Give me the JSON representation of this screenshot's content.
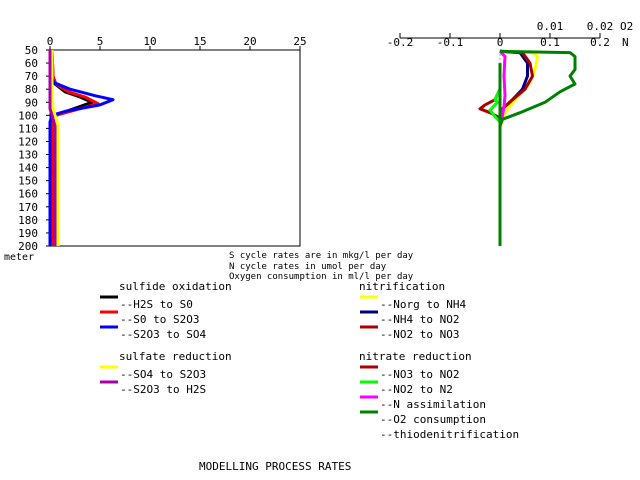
{
  "chart_data": [
    {
      "type": "line",
      "panel": "sulfur cycle rates",
      "x_axis_position": "top",
      "xlim": [
        0,
        25
      ],
      "x_ticks": [
        0,
        5,
        10,
        15,
        20,
        25
      ],
      "x_tick_labels": [
        "0",
        "5",
        "10",
        "15",
        "20",
        "25"
      ],
      "ylim": [
        50,
        200
      ],
      "y_inverted": true,
      "y_ticks": [
        50,
        60,
        70,
        80,
        90,
        100,
        110,
        120,
        130,
        140,
        150,
        160,
        170,
        180,
        190,
        200
      ],
      "y_tick_labels": [
        "50",
        "60",
        "70",
        "80",
        "90",
        "100",
        "110",
        "120",
        "130",
        "140",
        "150",
        "160",
        "170",
        "180",
        "190",
        "200"
      ],
      "ylabel": "meter",
      "series": [
        {
          "name": "--H2S to S0",
          "color": "#000000",
          "x": [
            0.2,
            0.3,
            0.5,
            1.5,
            3.0,
            4.2,
            2.0,
            0.5,
            0.3,
            0.2,
            0.2,
            0.2
          ],
          "y": [
            50,
            70,
            76,
            82,
            86,
            90,
            96,
            100,
            105,
            120,
            160,
            200
          ]
        },
        {
          "name": "--S0 to S2O3",
          "color": "#ff0000",
          "x": [
            0.2,
            0.3,
            0.6,
            1.8,
            3.5,
            4.8,
            2.5,
            0.6,
            0.3,
            0.2,
            0.2,
            0.2
          ],
          "y": [
            50,
            70,
            76,
            82,
            86,
            91,
            96,
            100,
            105,
            120,
            160,
            200
          ]
        },
        {
          "name": "--S2O3 to SO4",
          "color": "#0000ff",
          "x": [
            0.0,
            0.1,
            0.4,
            2.0,
            4.5,
            6.3,
            5.0,
            1.5,
            0.2,
            0.0,
            0.0,
            0.0
          ],
          "y": [
            50,
            70,
            75,
            80,
            85,
            88,
            92,
            97,
            100,
            105,
            150,
            200
          ]
        },
        {
          "name": "--SO4 to S2O3",
          "color": "#ffff00",
          "x": [
            0.2,
            0.2,
            0.3,
            0.5,
            0.7,
            0.8,
            0.8,
            0.8,
            0.8
          ],
          "y": [
            50,
            85,
            95,
            100,
            105,
            110,
            130,
            160,
            200
          ]
        },
        {
          "name": "--S2O3 to H2S",
          "color": "#aa00aa",
          "x": [
            0.0,
            0.0,
            0.2,
            0.3,
            0.5,
            0.5,
            0.5
          ],
          "y": [
            50,
            95,
            100,
            103,
            108,
            150,
            200
          ]
        }
      ]
    },
    {
      "type": "line",
      "panel": "nitrogen cycle rates and oxygen consumption",
      "x_axis_position": "top",
      "xlim": [
        -0.2,
        0.2
      ],
      "x_ticks": [
        -0.2,
        -0.1,
        0,
        0.1,
        0.2
      ],
      "x_tick_labels": [
        "-0.2",
        "-0.1",
        "0",
        "0.1",
        "0.2"
      ],
      "x2_ticks": [
        0.01,
        0.02
      ],
      "x2_tick_labels": [
        "0.01",
        "0.02"
      ],
      "x2_label": "O2",
      "x_unit_label": "N",
      "ylim": [
        50,
        200
      ],
      "y_inverted": true,
      "series": [
        {
          "name": "--Norg to NH4",
          "color": "#ffff00",
          "x": [
            0.0,
            0.065,
            0.075,
            0.07,
            0.06,
            0.045,
            0.03,
            0.02,
            0.01,
            0.005,
            0.0,
            0.0
          ],
          "y": [
            51,
            52,
            55,
            65,
            75,
            82,
            88,
            93,
            98,
            103,
            110,
            200
          ]
        },
        {
          "name": "--NH4 to NO2",
          "color": "#000080",
          "x": [
            0.0,
            0.04,
            0.055,
            0.055,
            0.045,
            0.025,
            0.005,
            0.0
          ],
          "y": [
            51,
            52,
            60,
            70,
            80,
            88,
            95,
            100
          ]
        },
        {
          "name": "--NO2 to NO3",
          "color": "#aa0000",
          "x": [
            0.0,
            0.045,
            0.06,
            0.065,
            0.05,
            0.025,
            0.005,
            0.0
          ],
          "y": [
            51,
            52,
            60,
            70,
            80,
            88,
            95,
            100
          ]
        },
        {
          "name": "--NO3 to NO2",
          "color": "#aa0000",
          "x": [
            0.0,
            -0.01,
            -0.03,
            -0.04,
            -0.02,
            0.0,
            0.0
          ],
          "y": [
            80,
            88,
            92,
            95,
            98,
            102,
            110
          ]
        },
        {
          "name": "--NO2 to N2",
          "color": "#00ff00",
          "x": [
            0.0,
            -0.01,
            -0.005,
            -0.02,
            -0.01,
            0.0,
            0.0
          ],
          "y": [
            80,
            88,
            90,
            96,
            101,
            105,
            200
          ]
        },
        {
          "name": "--N assimilation",
          "color": "#ff00ff",
          "x": [
            0.0,
            0.01,
            0.008,
            0.01,
            0.008,
            0.005,
            0.0,
            0.0
          ],
          "y": [
            51,
            55,
            70,
            85,
            93,
            100,
            108,
            200
          ]
        },
        {
          "name": "--O2 consumption",
          "color": "#008000",
          "x": [
            0.0,
            0.14,
            0.15,
            0.15,
            0.14,
            0.15,
            0.12,
            0.09,
            0.04,
            0.005,
            0.0,
            0.0
          ],
          "y": [
            51,
            52,
            55,
            65,
            70,
            76,
            82,
            90,
            98,
            103,
            108,
            200
          ]
        },
        {
          "name": "--thiodenitrification",
          "color": "#008000",
          "x": [
            0.0,
            0.0,
            0.0
          ],
          "y": [
            60,
            140,
            200
          ]
        }
      ]
    }
  ],
  "notes": {
    "line1": "S cycle rates are in mkg/l per day",
    "line2": "N cycle rates in umol per day",
    "line3": "Oxygen consumption in ml/l per day"
  },
  "legend_groups": {
    "sulfide_oxidation": "sulfide oxidation",
    "sulfate_reduction": "sulfate reduction",
    "nitrification": "nitrification",
    "nitrate_reduction": "nitrate reduction"
  },
  "legend_swatch_colors": [
    "#000000",
    "#ff0000",
    "#0000ff",
    "#ffff00",
    "#aa00aa",
    "#ffff00",
    "#000080",
    "#aa0000",
    "#aa0000",
    "#00ff00",
    "#ff00ff",
    "#008000"
  ],
  "footer": "MODELLING PROCESS RATES"
}
